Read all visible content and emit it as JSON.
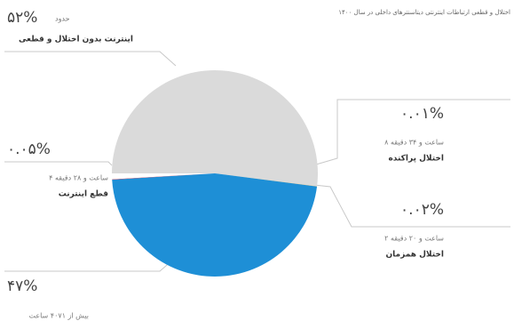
{
  "chart_data": {
    "type": "pie",
    "title": "اختلال و قطعی ارتباطات اینترنتی دیتاسنترهای داخلی در سال ۱۴۰۰",
    "annotation": "حدود",
    "categories": [
      "اینترنت بدون اختلال و قطعی",
      "اختلال پراکنده",
      "اختلال همزمان",
      null,
      "قطع اینترنت"
    ],
    "details": [
      null,
      "۸ ساعت و ۳۴ دقیقه",
      "۲ ساعت و ۲۰ دقیقه",
      "بیش از ۴۰۷۱ ساعت",
      "۴ ساعت و ۲۸ دقیقه"
    ],
    "values": [
      52,
      0.01,
      0.02,
      47,
      0.05
    ],
    "value_labels": [
      "۵۲%",
      "۰.۰۱%",
      "۰.۰۲%",
      "۴۷%",
      "۰.۰۵%"
    ],
    "colors": [
      "#dadada",
      "#f6d31c",
      "#ef7d1e",
      "#1e8fd6",
      "#d5203f"
    ]
  }
}
